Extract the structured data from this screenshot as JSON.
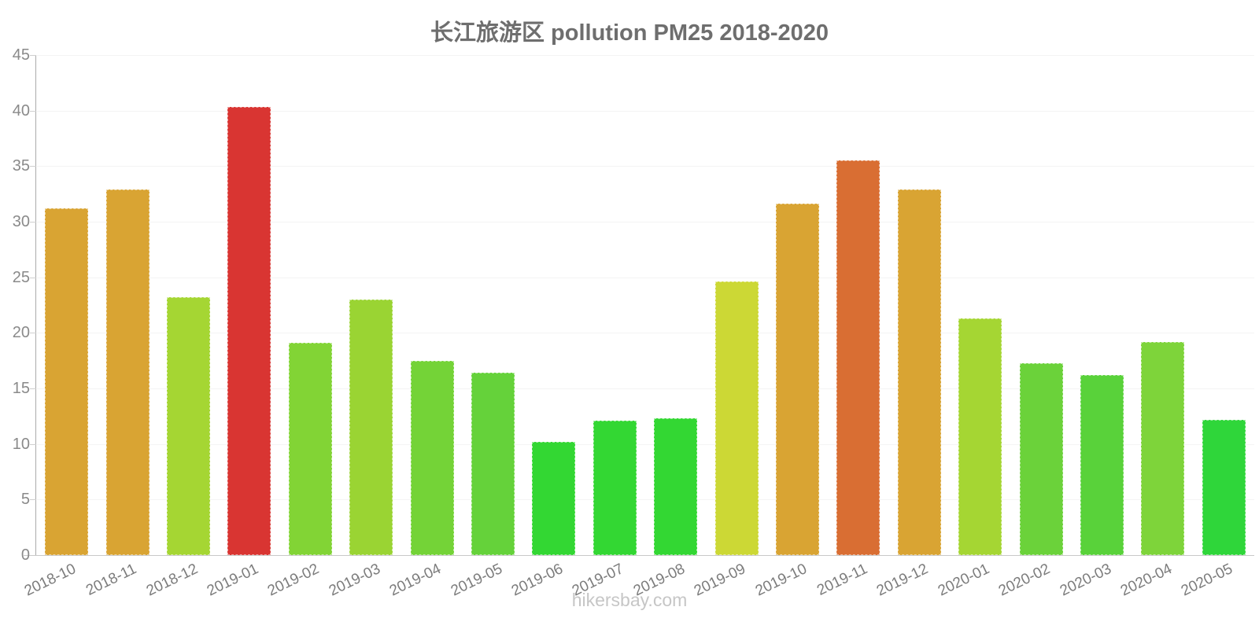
{
  "page": {
    "title": "长江旅游区 pollution PM25 2018-2020",
    "footer": "hikersbay.com"
  },
  "chart_data": {
    "type": "bar",
    "title": "长江旅游区 pollution PM25 2018-2020",
    "categories": [
      "2018-10",
      "2018-11",
      "2018-12",
      "2019-01",
      "2019-02",
      "2019-03",
      "2019-04",
      "2019-05",
      "2019-06",
      "2019-07",
      "2019-08",
      "2019-09",
      "2019-10",
      "2019-11",
      "2019-12",
      "2020-01",
      "2020-02",
      "2020-03",
      "2020-04",
      "2020-05"
    ],
    "values": [
      31.2,
      32.9,
      23.2,
      40.3,
      19.1,
      23.0,
      17.5,
      16.4,
      10.2,
      12.1,
      12.3,
      24.6,
      31.6,
      35.5,
      32.9,
      21.3,
      17.3,
      16.2,
      19.2,
      12.2
    ],
    "bar_colors": [
      "#D9A433",
      "#D9A433",
      "#A5D633",
      "#D93532",
      "#82D435",
      "#9AD433",
      "#74D337",
      "#65D23A",
      "#33D733",
      "#33D733",
      "#33D733",
      "#CCD835",
      "#D9A433",
      "#D96E33",
      "#D9A433",
      "#A5D633",
      "#6BD23A",
      "#59D23A",
      "#7ED43A",
      "#2FD63A"
    ],
    "xlabel": "",
    "ylabel": "",
    "ylim": [
      0,
      45
    ],
    "yticks": [
      0,
      5,
      10,
      15,
      20,
      25,
      30,
      35,
      40,
      45
    ],
    "grid": true,
    "legend": false,
    "footer": "hikersbay.com",
    "colors": {
      "title": "#6E6E6E",
      "axis_line": "#ABABAB",
      "baseline": "#C9C9C9",
      "gridline": "#F4F4F4",
      "tick_mark": "#CFCFCF",
      "ytick_label": "#8A8A8A",
      "xtick_label": "#7C7C7C",
      "footer": "#C6C6C6"
    }
  }
}
